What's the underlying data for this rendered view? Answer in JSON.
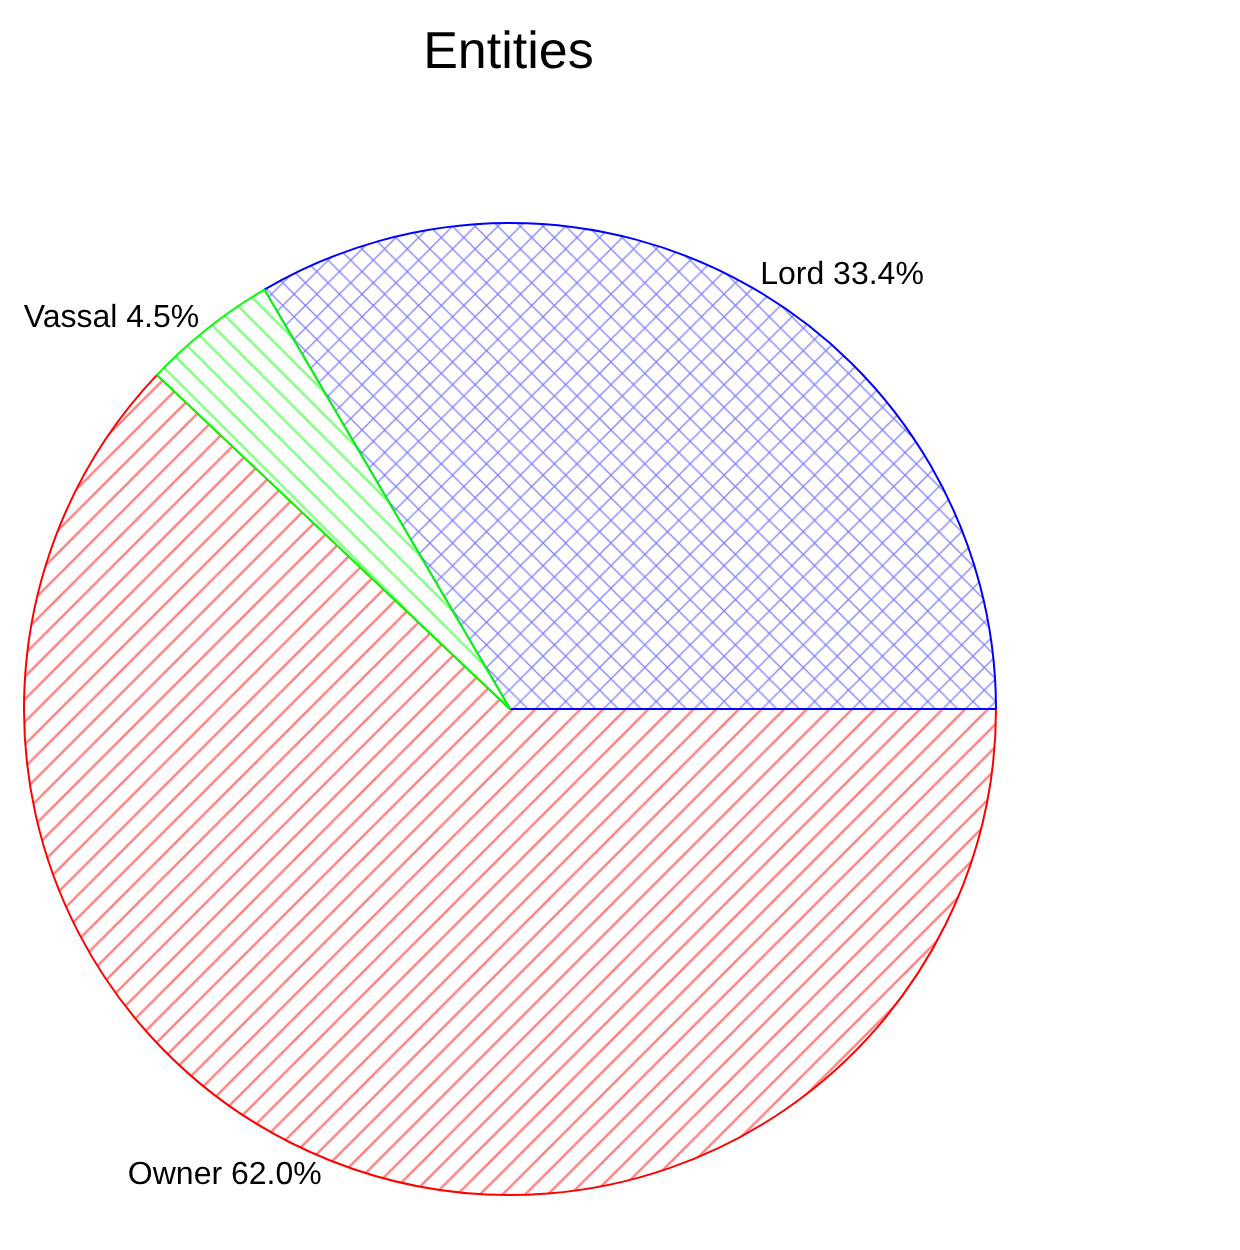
{
  "chart_data": {
    "type": "pie",
    "title": "Entities",
    "categories": [
      "Owner",
      "Lord",
      "Vassal"
    ],
    "values": [
      62.0,
      33.4,
      4.5
    ],
    "value_labels": [
      "62.0%",
      "33.4%",
      "4.5%"
    ],
    "colors": [
      "#ff0000",
      "#0000ff",
      "#00ff00"
    ],
    "legend": false
  }
}
